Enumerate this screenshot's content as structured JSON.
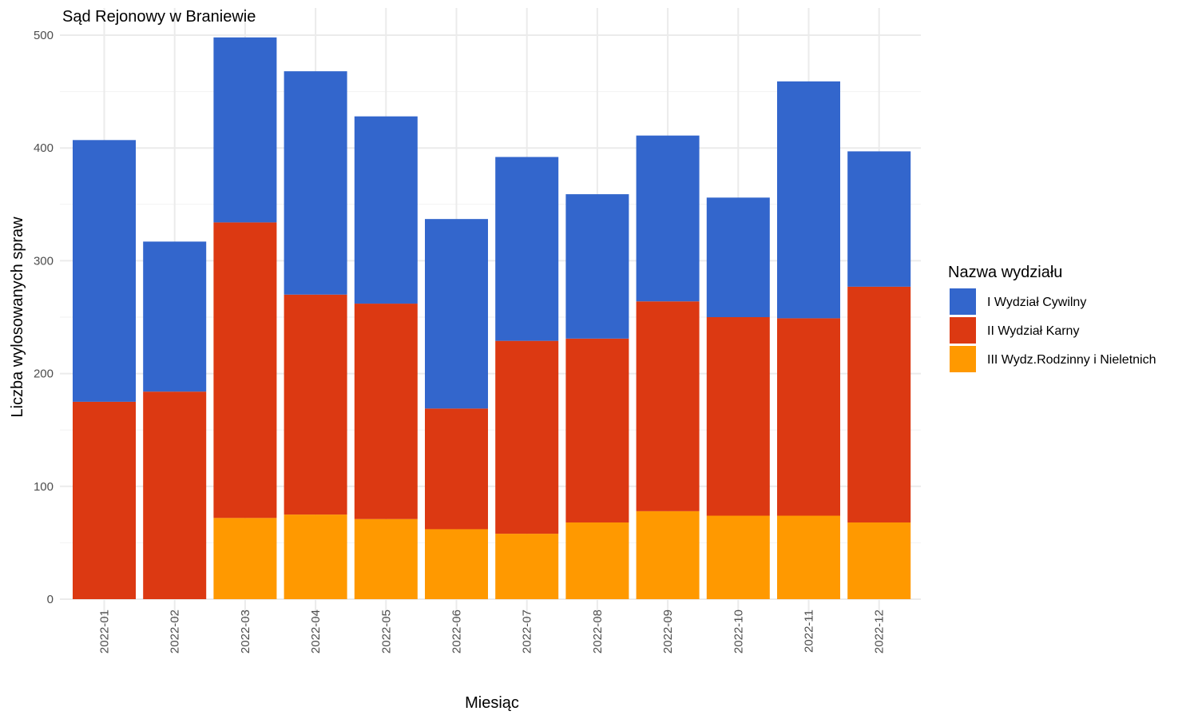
{
  "chart_data": {
    "type": "bar",
    "stacked": true,
    "title": "Sąd Rejonowy w Braniewie",
    "xlabel": "Miesiąc",
    "ylabel": "Liczba wylosowanych spraw",
    "ylim": [
      0,
      500
    ],
    "yticks": [
      0,
      100,
      200,
      300,
      400,
      500
    ],
    "grid": true,
    "legend_position": "right",
    "legend_title": "Nazwa wydziału",
    "categories": [
      "2022-01",
      "2022-02",
      "2022-03",
      "2022-04",
      "2022-05",
      "2022-06",
      "2022-07",
      "2022-08",
      "2022-09",
      "2022-10",
      "2022-11",
      "2022-12"
    ],
    "series": [
      {
        "name": "III Wydz.Rodzinny i Nieletnich",
        "color": "#FF9900",
        "values": [
          0,
          0,
          72,
          75,
          71,
          62,
          58,
          68,
          78,
          74,
          74,
          68
        ]
      },
      {
        "name": "II Wydział Karny",
        "color": "#DC3912",
        "values": [
          175,
          184,
          262,
          195,
          191,
          107,
          171,
          163,
          186,
          176,
          175,
          209
        ]
      },
      {
        "name": "I Wydział Cywilny",
        "color": "#3366CC",
        "values": [
          232,
          133,
          164,
          198,
          166,
          168,
          163,
          128,
          147,
          106,
          210,
          120
        ]
      }
    ],
    "legend_order": [
      "I Wydział Cywilny",
      "II Wydział Karny",
      "III Wydz.Rodzinny i Nieletnich"
    ]
  }
}
